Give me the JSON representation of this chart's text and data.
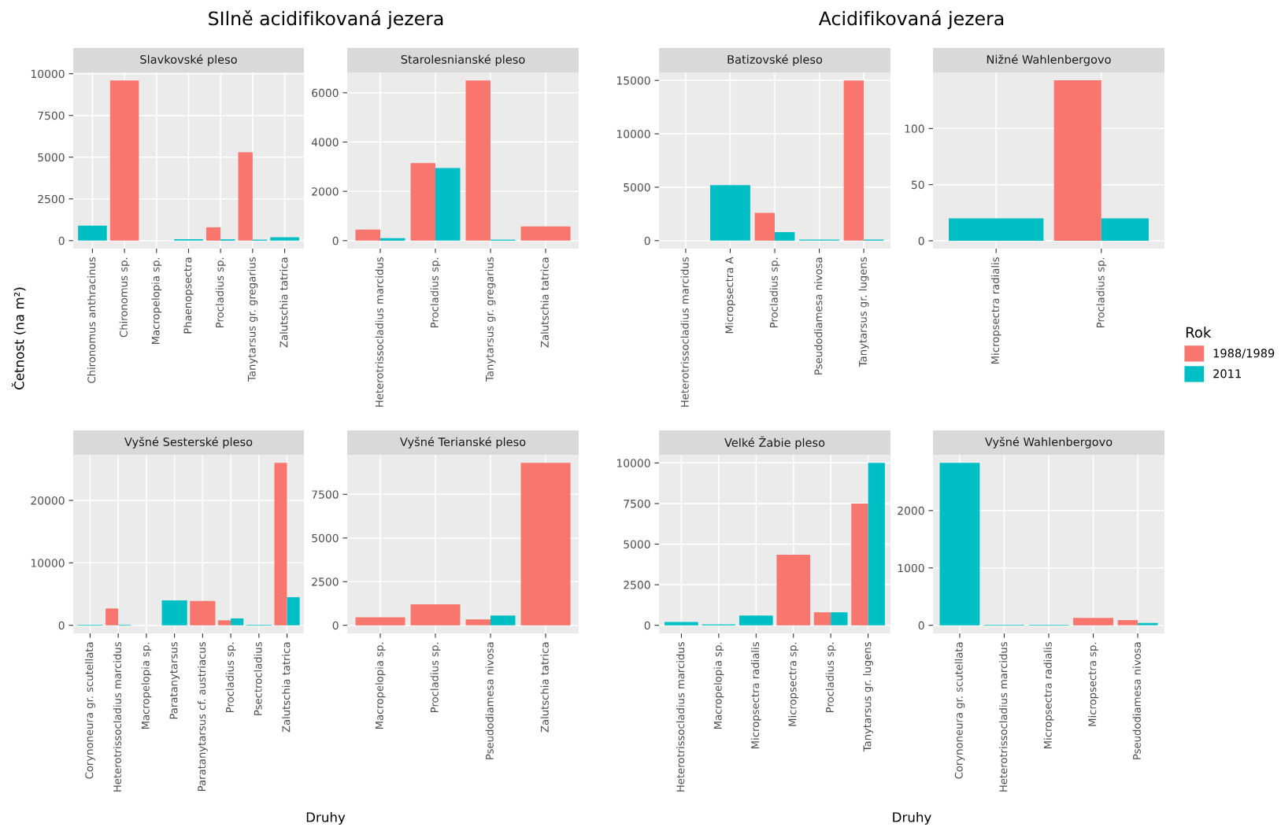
{
  "chart_data": [
    {
      "type": "bar",
      "title": "Slavkovské pleso",
      "annotations": [
        "SIlně acidifikovaná jezera"
      ],
      "ylabel": "Četnost (na m²)",
      "grid": true,
      "legend": "right",
      "legend_title": "Rok",
      "categories": [
        "Chironomus anthracinus",
        "Chironomus sp.",
        "Macropelopia sp.",
        "Phaenopsectra",
        "Procladius sp.",
        "Tanytarsus gr. gregarius",
        "Zalutschia tatrica"
      ],
      "series": [
        {
          "name": "1988/1989",
          "color": "#f8766d",
          "values": [
            null,
            9600,
            null,
            null,
            800,
            5300,
            null
          ]
        },
        {
          "name": "2011",
          "color": "#00bfc4",
          "values": [
            900,
            null,
            null,
            80,
            80,
            60,
            200
          ]
        }
      ],
      "ylim": [
        -480,
        10080
      ],
      "yticks": [
        0,
        2500,
        5000,
        7500,
        10000
      ]
    },
    {
      "type": "bar",
      "title": "Starolesnianské pleso",
      "grid": true,
      "categories": [
        "Heterotrissocladius marcidus",
        "Procladius sp.",
        "Tanytarsus gr. gregarius",
        "Zalutschia tatrica"
      ],
      "series": [
        {
          "name": "1988/1989",
          "color": "#f8766d",
          "values": [
            450,
            3150,
            6500,
            580
          ]
        },
        {
          "name": "2011",
          "color": "#00bfc4",
          "values": [
            100,
            2950,
            40,
            null
          ]
        }
      ],
      "ylim": [
        -325,
        6825
      ],
      "yticks": [
        0,
        2000,
        4000,
        6000
      ]
    },
    {
      "type": "bar",
      "title": "Batizovské pleso",
      "annotations": [
        "Acidifikovaná jezera"
      ],
      "grid": true,
      "categories": [
        "Heterotrissocladius marcidus",
        "Micropsectra A",
        "Procladius sp.",
        "Pseudodiamesa nivosa",
        "Tanytarsus gr. lugens"
      ],
      "series": [
        {
          "name": "1988/1989",
          "color": "#f8766d",
          "values": [
            null,
            null,
            2600,
            null,
            15000
          ]
        },
        {
          "name": "2011",
          "color": "#00bfc4",
          "values": [
            null,
            5200,
            800,
            100,
            100
          ]
        }
      ],
      "ylim": [
        -750,
        15750
      ],
      "yticks": [
        0,
        5000,
        10000,
        15000
      ]
    },
    {
      "type": "bar",
      "title": "Nižné Wahlenbergovo",
      "grid": true,
      "categories": [
        "Micropsectra radialis",
        "Procladius sp."
      ],
      "series": [
        {
          "name": "1988/1989",
          "color": "#f8766d",
          "values": [
            null,
            143
          ]
        },
        {
          "name": "2011",
          "color": "#00bfc4",
          "values": [
            20,
            20
          ]
        }
      ],
      "ylim": [
        -7,
        150
      ],
      "yticks": [
        0,
        50,
        100
      ]
    },
    {
      "type": "bar",
      "title": "Vyšné Sesterské pleso",
      "xlabel": "Druhy",
      "grid": true,
      "categories": [
        "Corynoneura gr. scutellata",
        "Heterotrissocladius marcidus",
        "Macropelopia sp.",
        "Paratanytarsus",
        "Paratanytarsus cf. austriacus",
        "Procladius sp.",
        "Psectrocladius",
        "Zalutschia tatrica"
      ],
      "series": [
        {
          "name": "1988/1989",
          "color": "#f8766d",
          "values": [
            null,
            2700,
            null,
            null,
            3900,
            800,
            null,
            26000
          ]
        },
        {
          "name": "2011",
          "color": "#00bfc4",
          "values": [
            100,
            100,
            null,
            4000,
            null,
            1100,
            100,
            4500
          ]
        }
      ],
      "ylim": [
        -1300,
        27300
      ],
      "yticks": [
        0,
        10000,
        20000
      ]
    },
    {
      "type": "bar",
      "title": "Vyšné Terianské pleso",
      "grid": true,
      "categories": [
        "Macropelopia sp.",
        "Procladius sp.",
        "Pseudodiamesa nivosa",
        "Zalutschia tatrica"
      ],
      "series": [
        {
          "name": "1988/1989",
          "color": "#f8766d",
          "values": [
            460,
            1200,
            340,
            9300
          ]
        },
        {
          "name": "2011",
          "color": "#00bfc4",
          "values": [
            null,
            null,
            560,
            null
          ]
        }
      ],
      "ylim": [
        -465,
        9765
      ],
      "yticks": [
        0,
        2500,
        5000,
        7500
      ]
    },
    {
      "type": "bar",
      "title": "Velké Žabie pleso",
      "xlabel": "Druhy",
      "grid": true,
      "categories": [
        "Heterotrissocladius marcidus",
        "Macropelopia sp.",
        "Micropsectra radialis",
        "Micropsectra sp.",
        "Procladius sp.",
        "Tanytarsus gr. lugens"
      ],
      "series": [
        {
          "name": "1988/1989",
          "color": "#f8766d",
          "values": [
            null,
            null,
            null,
            4350,
            800,
            7500
          ]
        },
        {
          "name": "2011",
          "color": "#00bfc4",
          "values": [
            200,
            60,
            600,
            null,
            800,
            10000
          ]
        }
      ],
      "ylim": [
        -500,
        10500
      ],
      "yticks": [
        0,
        2500,
        5000,
        7500,
        10000
      ]
    },
    {
      "type": "bar",
      "title": "Vyšné Wahlenbergovo",
      "grid": true,
      "categories": [
        "Corynoneura gr. scutellata",
        "Heterotrissocladius marcidus",
        "Micropsectra radialis",
        "Micropsectra sp.",
        "Pseudodiamesa nivosa"
      ],
      "series": [
        {
          "name": "1988/1989",
          "color": "#f8766d",
          "values": [
            null,
            null,
            null,
            130,
            90
          ]
        },
        {
          "name": "2011",
          "color": "#00bfc4",
          "values": [
            2830,
            10,
            10,
            null,
            40
          ]
        }
      ],
      "ylim": [
        -142,
        2972
      ],
      "yticks": [
        0,
        1000,
        2000
      ]
    }
  ]
}
